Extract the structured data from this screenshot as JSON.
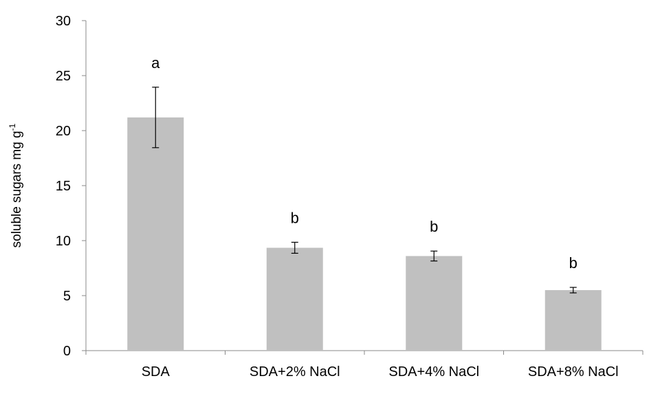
{
  "chart_data": {
    "type": "bar",
    "title": "",
    "xlabel": "",
    "ylabel": "soluble sugars mg g",
    "ylabel_superscript": "-1",
    "ylim": [
      0,
      30
    ],
    "yticks": [
      "0",
      "5",
      "10",
      "15",
      "20",
      "25",
      "30"
    ],
    "ytick_values": [
      0,
      5,
      10,
      15,
      20,
      25,
      30
    ],
    "categories": [
      "SDA",
      "SDA+2% NaCl",
      "SDA+4% NaCl",
      "SDA+8% NaCl"
    ],
    "values": [
      21.2,
      9.35,
      8.6,
      5.5
    ],
    "errors": [
      2.75,
      0.5,
      0.45,
      0.25
    ],
    "significance_labels": [
      "a",
      "b",
      "b",
      "b"
    ],
    "bar_color": "#c0c0c0",
    "error_bar_color": "#000000",
    "grid": false,
    "legend": "none"
  }
}
